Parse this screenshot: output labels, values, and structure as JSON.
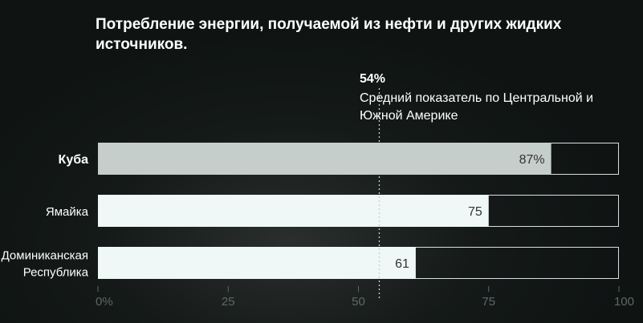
{
  "chart_data": {
    "type": "bar",
    "orientation": "horizontal",
    "title": "Потребление энергии, получаемой из нефти и других жидких источников.",
    "categories": [
      {
        "lines": [
          "Куба"
        ],
        "bold": true
      },
      {
        "lines": [
          "Ямайка"
        ],
        "bold": false
      },
      {
        "lines": [
          "Доминиканская",
          "Республика"
        ],
        "bold": false
      }
    ],
    "values": [
      87,
      75,
      61
    ],
    "value_labels": [
      "87%",
      "75",
      "61"
    ],
    "xlim": [
      0,
      100
    ],
    "x_ticks": [
      0,
      25,
      50,
      75,
      100
    ],
    "x_tick_labels": [
      "0%",
      "25",
      "50",
      "75",
      "100"
    ],
    "reference_line": {
      "value": 54,
      "value_label": "54%",
      "text_lines": [
        "Средний показатель по Центральной и",
        "Южной Америке"
      ]
    },
    "colors": {
      "highlight_bar": "#c6cecc",
      "bar": "#eff8f7",
      "track_border": "#d9e0df",
      "reference": "#c8cfce",
      "tick": "#5d6867"
    }
  }
}
